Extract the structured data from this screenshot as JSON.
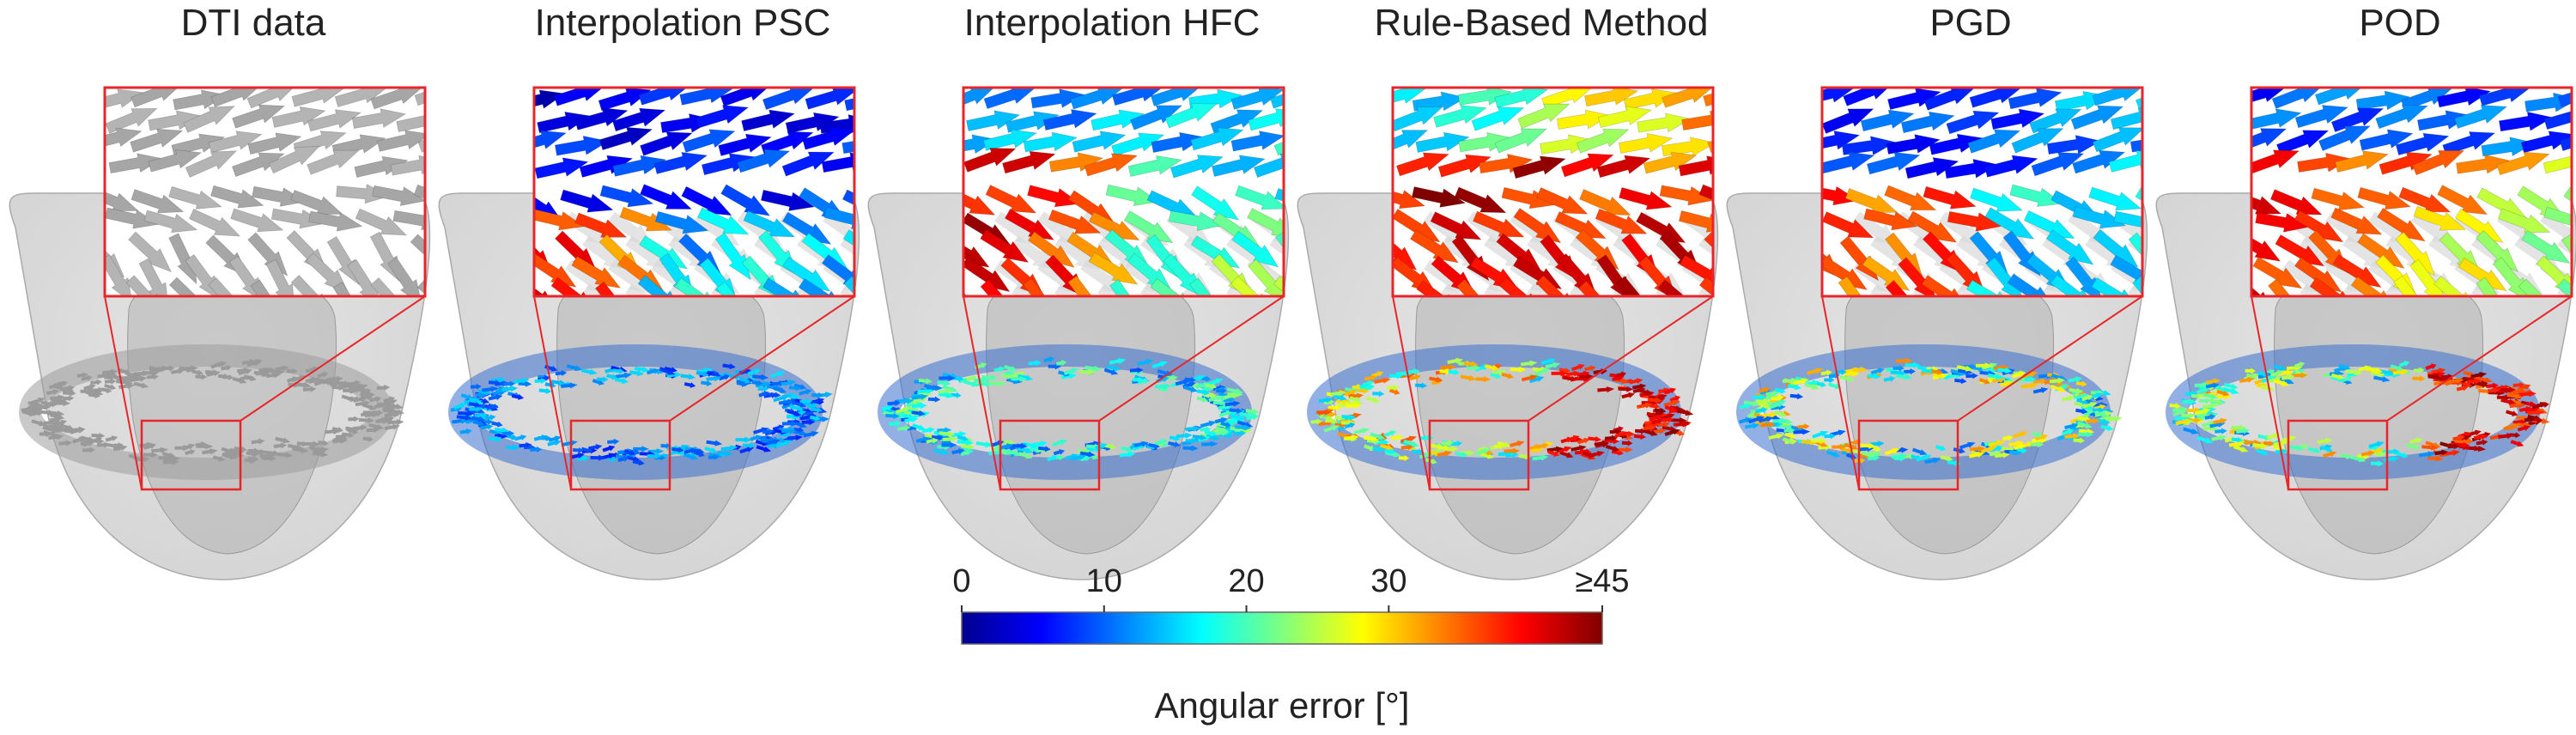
{
  "panels": [
    {
      "title": "DTI data",
      "scheme": "gray"
    },
    {
      "title": "Interpolation PSC",
      "scheme": "psc"
    },
    {
      "title": "Interpolation HFC",
      "scheme": "hfc"
    },
    {
      "title": "Rule-Based Method",
      "scheme": "rule"
    },
    {
      "title": "PGD",
      "scheme": "pgd"
    },
    {
      "title": "POD",
      "scheme": "pod"
    }
  ],
  "colorbar": {
    "title": "Angular error [°]",
    "ticks": [
      "0",
      "10",
      "20",
      "30",
      "≥45"
    ],
    "tick_values": [
      0,
      10,
      20,
      30,
      45
    ],
    "range": [
      0,
      45
    ],
    "colormap": "jet"
  },
  "colors": {
    "zoom_box": "#e8262a",
    "heart_mesh": "#bdbdbd",
    "dti_arrow": "#a8a8a8"
  }
}
